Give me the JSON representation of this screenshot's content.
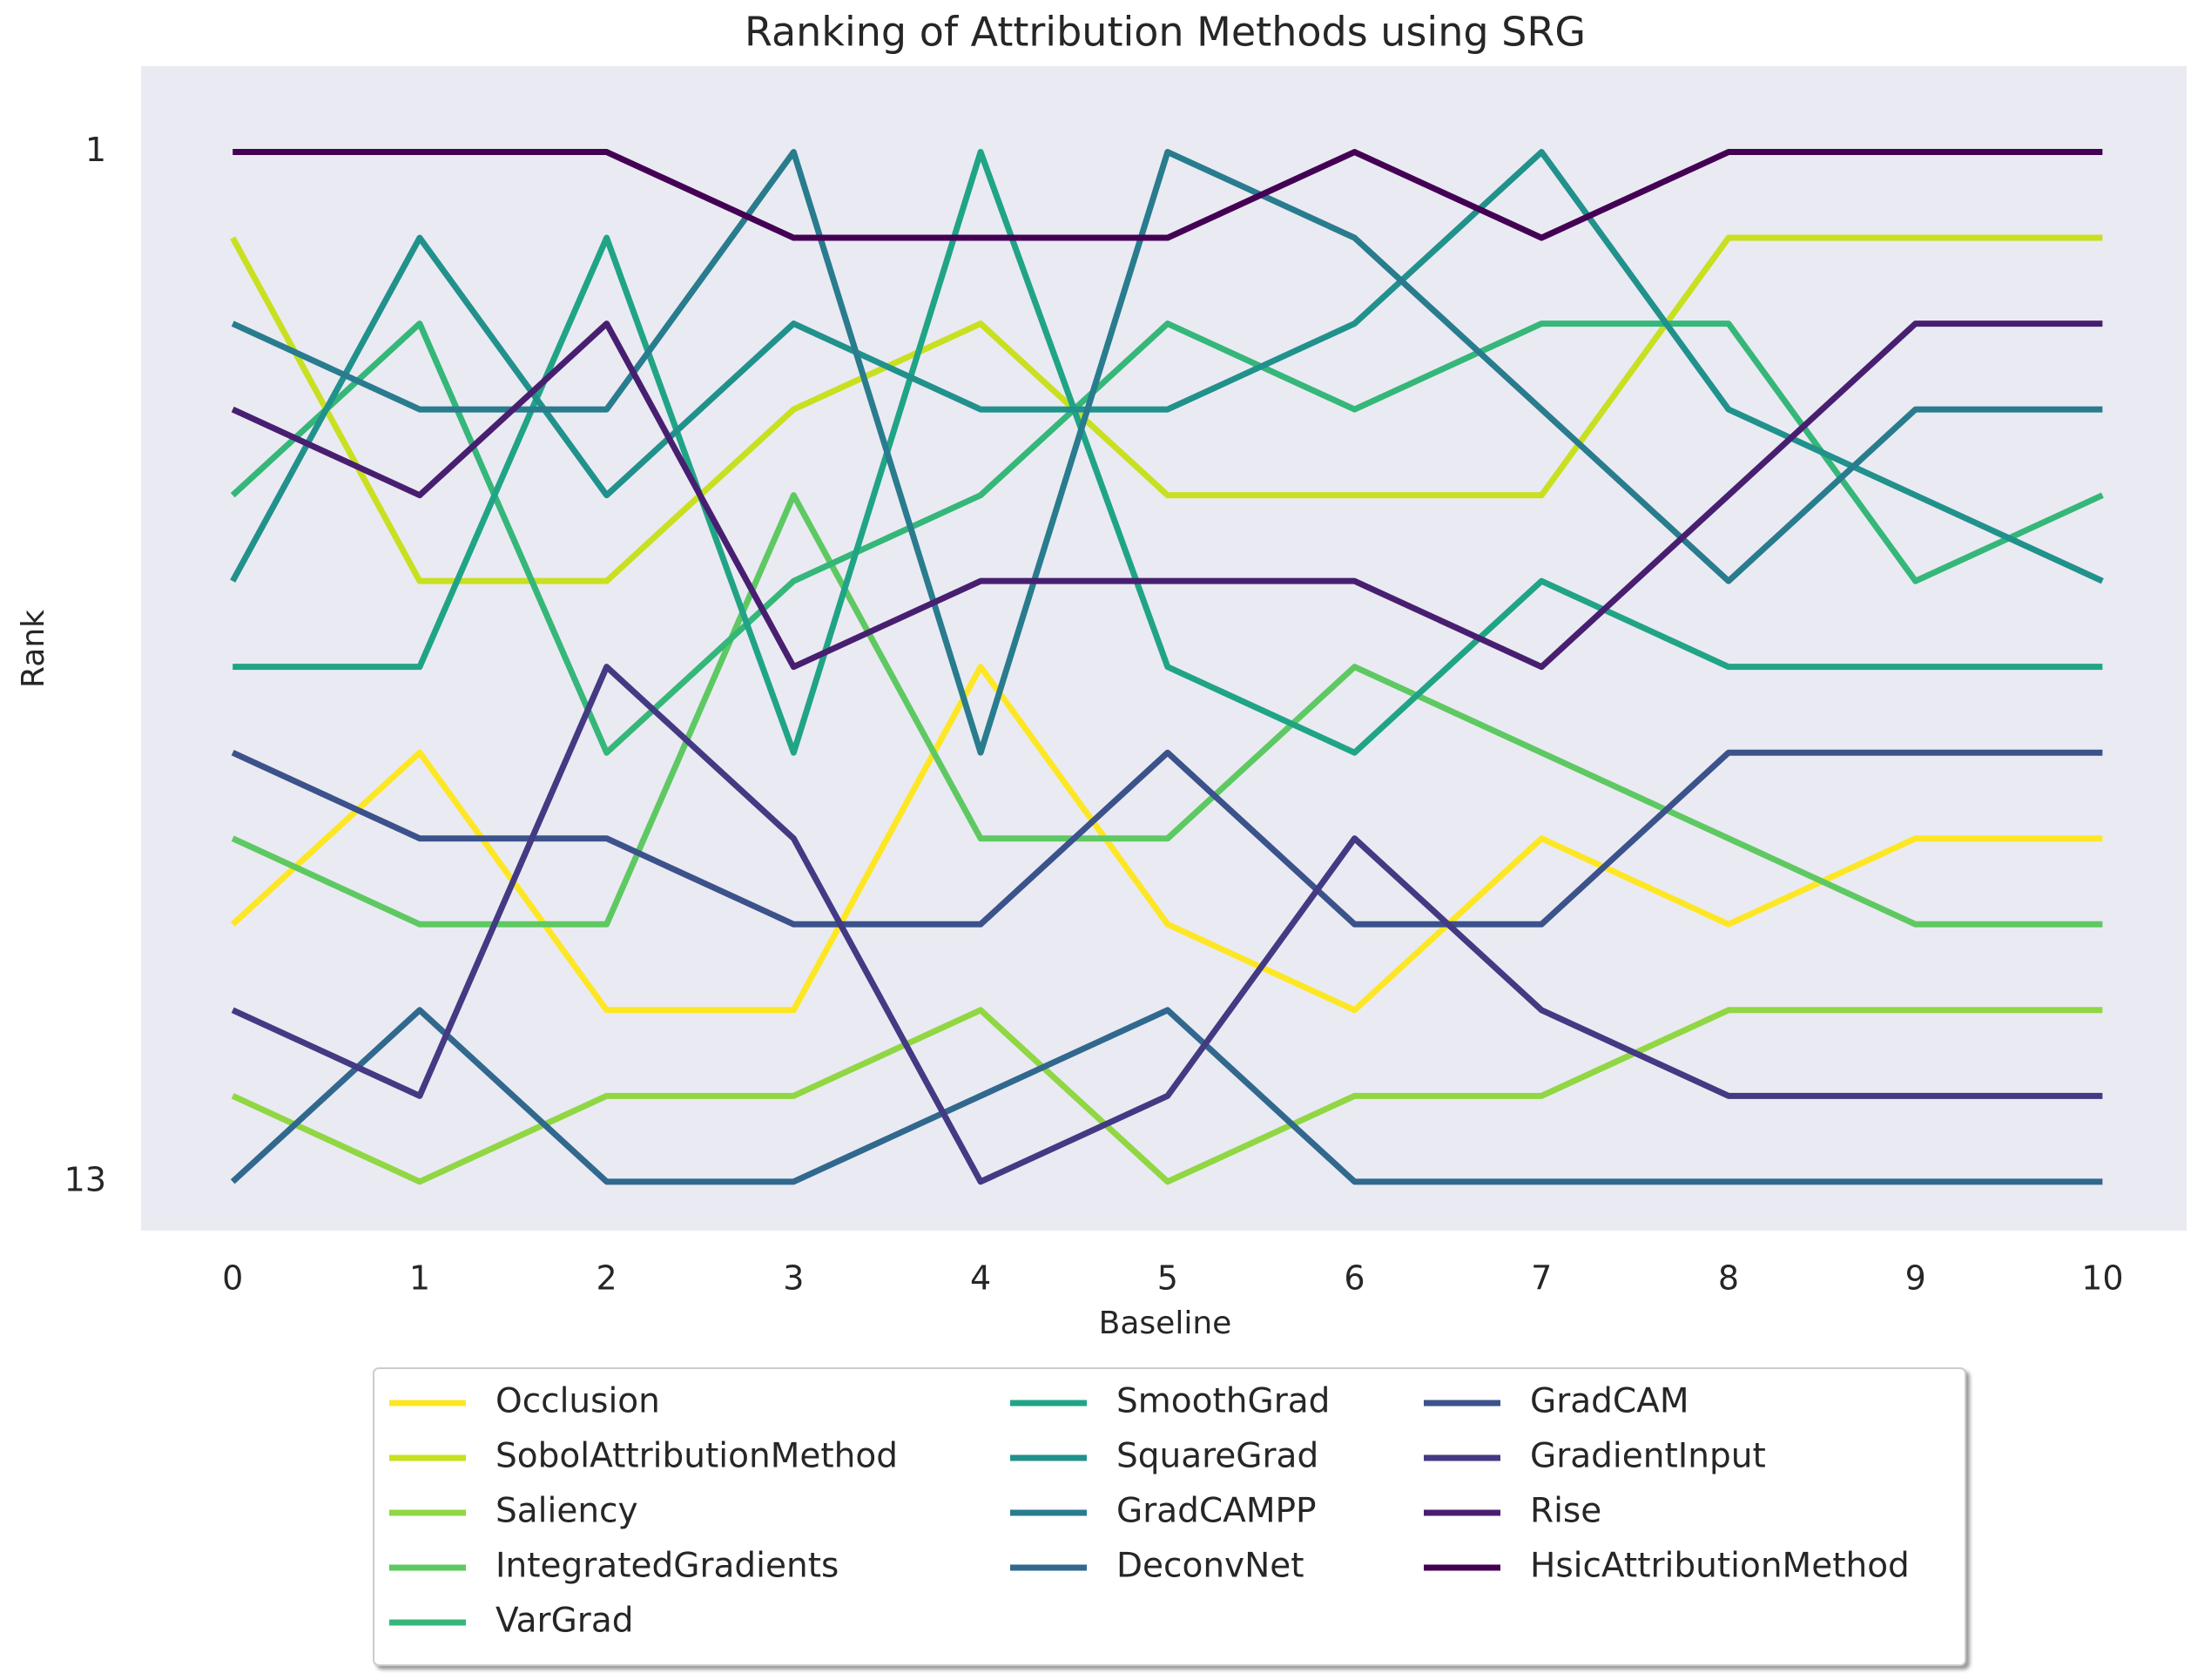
{
  "chart_data": {
    "type": "line",
    "title": "Ranking of Attribution Methods using SRG",
    "x_label": "Baseline",
    "y_label": "Rank",
    "x": [
      0,
      1,
      2,
      3,
      4,
      5,
      6,
      7,
      8,
      9,
      10
    ],
    "xlim": [
      -0.49,
      10.45
    ],
    "xticks": [
      0,
      1,
      2,
      3,
      4,
      5,
      6,
      7,
      8,
      9,
      10
    ],
    "ylim": [
      0,
      13.57
    ],
    "yticks": [
      1,
      13
    ],
    "y_inverted": true,
    "grid": false,
    "legend_position": "bottom",
    "series": [
      {
        "name": "Occlusion",
        "color": "#fde725",
        "values": [
          10,
          8,
          11,
          11,
          7,
          10,
          11,
          9,
          10,
          9,
          9
        ]
      },
      {
        "name": "SobolAttributionMethod",
        "color": "#c8e020",
        "values": [
          2,
          6,
          6,
          4,
          3,
          5,
          5,
          5,
          2,
          2,
          2
        ]
      },
      {
        "name": "Saliency",
        "color": "#90d743",
        "values": [
          12,
          13,
          12,
          12,
          11,
          13,
          12,
          12,
          11,
          11,
          11
        ]
      },
      {
        "name": "IntegratedGradients",
        "color": "#5ec962",
        "values": [
          9,
          10,
          10,
          5,
          9,
          9,
          7,
          8,
          9,
          10,
          10
        ]
      },
      {
        "name": "VarGrad",
        "color": "#35b779",
        "values": [
          5,
          3,
          8,
          6,
          5,
          3,
          4,
          3,
          3,
          6,
          5
        ]
      },
      {
        "name": "SmoothGrad",
        "color": "#20a486",
        "values": [
          7,
          7,
          2,
          8,
          1,
          7,
          8,
          6,
          7,
          7,
          7
        ]
      },
      {
        "name": "SquareGrad",
        "color": "#21918c",
        "values": [
          6,
          2,
          5,
          3,
          4,
          4,
          3,
          1,
          4,
          5,
          6
        ]
      },
      {
        "name": "GradCAMPP",
        "color": "#287c8e",
        "values": [
          3,
          4,
          4,
          1,
          8,
          1,
          2,
          4,
          6,
          4,
          4
        ]
      },
      {
        "name": "DeconvNet",
        "color": "#31688e",
        "values": [
          13,
          11,
          13,
          13,
          12,
          11,
          13,
          13,
          13,
          13,
          13
        ]
      },
      {
        "name": "GradCAM",
        "color": "#3b528b",
        "values": [
          8,
          9,
          9,
          10,
          10,
          8,
          10,
          10,
          8,
          8,
          8
        ]
      },
      {
        "name": "GradientInput",
        "color": "#443983",
        "values": [
          11,
          12,
          7,
          9,
          13,
          12,
          9,
          11,
          12,
          12,
          12
        ]
      },
      {
        "name": "Rise",
        "color": "#481f70",
        "values": [
          4,
          5,
          3,
          7,
          6,
          6,
          6,
          7,
          5,
          3,
          3
        ]
      },
      {
        "name": "HsicAttributionMethod",
        "color": "#440154",
        "values": [
          1,
          1,
          1,
          2,
          2,
          2,
          1,
          2,
          1,
          1,
          1
        ]
      }
    ]
  }
}
